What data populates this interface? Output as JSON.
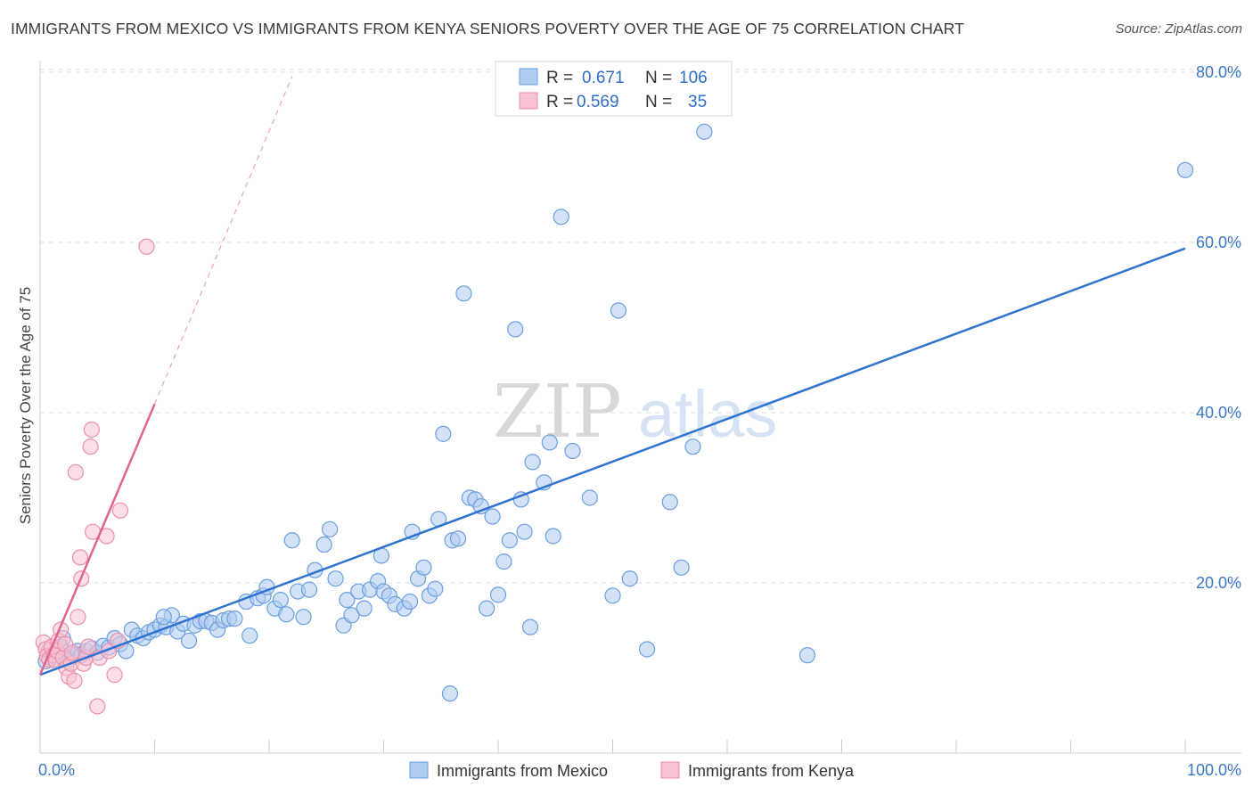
{
  "title": "IMMIGRANTS FROM MEXICO VS IMMIGRANTS FROM KENYA SENIORS POVERTY OVER THE AGE OF 75 CORRELATION CHART",
  "source": "Source: ZipAtlas.com",
  "watermark": {
    "zip": "ZIP",
    "atlas": "atlas"
  },
  "colors": {
    "mexico_fill": "#aecbf0",
    "mexico_stroke": "#6a9fe0",
    "mexico_line": "#2f73d0",
    "kenya_fill": "#f7c3d2",
    "kenya_stroke": "#ec8fab",
    "kenya_line": "#e0648e",
    "grid": "#dddddd",
    "tick_text": "#3b78c8"
  },
  "legend": {
    "rows": [
      {
        "r_label": "R =",
        "r_value": "0.671",
        "n_label": "N =",
        "n_value": "106"
      },
      {
        "r_label": "R =",
        "r_value": "0.569",
        "n_label": "N =",
        "n_value": "35"
      }
    ]
  },
  "chart_data": {
    "type": "scatter",
    "title": "IMMIGRANTS FROM MEXICO VS IMMIGRANTS FROM KENYA SENIORS POVERTY OVER THE AGE OF 75 CORRELATION CHART",
    "xlabel": "",
    "ylabel": "Seniors Poverty Over the Age of 75",
    "xlim": [
      0,
      100
    ],
    "ylim": [
      0,
      83
    ],
    "x_tick_labels": [
      {
        "value": 0,
        "label": "0.0%"
      },
      {
        "value": 100,
        "label": "100.0%"
      }
    ],
    "y_tick_labels": [
      {
        "value": 20,
        "label": "20.0%"
      },
      {
        "value": 40,
        "label": "40.0%"
      },
      {
        "value": 60,
        "label": "60.0%"
      },
      {
        "value": 80,
        "label": "80.0%"
      }
    ],
    "x_minor_ticks": [
      10,
      20,
      30,
      40,
      50,
      60,
      70,
      80,
      90,
      100
    ],
    "grid": true,
    "legend_position": "top-center",
    "series": [
      {
        "name": "Immigrants from Mexico",
        "r": 0.671,
        "n": 106,
        "trend": {
          "x": [
            0,
            100
          ],
          "y": [
            9.2,
            59.3
          ],
          "style": "solid"
        },
        "points": [
          [
            0.5,
            10.8
          ],
          [
            0.8,
            12.0
          ],
          [
            1.0,
            11.5
          ],
          [
            1.2,
            11.0
          ],
          [
            1.5,
            11.8
          ],
          [
            1.8,
            12.5
          ],
          [
            2.0,
            13.5
          ],
          [
            2.2,
            11.2
          ],
          [
            2.5,
            11.0
          ],
          [
            2.8,
            11.6
          ],
          [
            3.0,
            11.5
          ],
          [
            3.3,
            12.0
          ],
          [
            3.6,
            11.5
          ],
          [
            4.0,
            12.0
          ],
          [
            4.5,
            12.3
          ],
          [
            5.0,
            11.8
          ],
          [
            5.5,
            12.6
          ],
          [
            6.0,
            12.4
          ],
          [
            6.5,
            13.5
          ],
          [
            7.0,
            12.8
          ],
          [
            7.5,
            12.0
          ],
          [
            8.0,
            14.5
          ],
          [
            8.5,
            13.8
          ],
          [
            9.0,
            13.5
          ],
          [
            9.5,
            14.2
          ],
          [
            10.0,
            14.5
          ],
          [
            10.5,
            15.0
          ],
          [
            11.0,
            14.8
          ],
          [
            11.5,
            16.2
          ],
          [
            12.0,
            14.3
          ],
          [
            12.5,
            15.2
          ],
          [
            13.0,
            13.2
          ],
          [
            13.5,
            15.0
          ],
          [
            14.0,
            15.5
          ],
          [
            14.5,
            15.5
          ],
          [
            15.0,
            15.3
          ],
          [
            15.5,
            14.5
          ],
          [
            16.0,
            15.6
          ],
          [
            16.5,
            15.8
          ],
          [
            17.0,
            15.8
          ],
          [
            18.0,
            17.8
          ],
          [
            18.3,
            13.8
          ],
          [
            19.0,
            18.2
          ],
          [
            19.5,
            18.5
          ],
          [
            19.8,
            19.5
          ],
          [
            20.5,
            17.0
          ],
          [
            21.0,
            18.0
          ],
          [
            21.5,
            16.3
          ],
          [
            22.0,
            25.0
          ],
          [
            22.5,
            19.0
          ],
          [
            23.0,
            16.0
          ],
          [
            23.5,
            19.2
          ],
          [
            24.0,
            21.5
          ],
          [
            24.8,
            24.5
          ],
          [
            25.3,
            26.3
          ],
          [
            25.8,
            20.5
          ],
          [
            26.5,
            15.0
          ],
          [
            26.8,
            18.0
          ],
          [
            27.2,
            16.2
          ],
          [
            27.8,
            19.0
          ],
          [
            28.3,
            17.0
          ],
          [
            28.8,
            19.2
          ],
          [
            29.5,
            20.2
          ],
          [
            29.8,
            23.2
          ],
          [
            30.0,
            19.0
          ],
          [
            30.5,
            18.5
          ],
          [
            31.0,
            17.5
          ],
          [
            31.8,
            17.0
          ],
          [
            32.3,
            17.8
          ],
          [
            32.5,
            26.0
          ],
          [
            33.0,
            20.5
          ],
          [
            33.5,
            21.8
          ],
          [
            34.0,
            18.5
          ],
          [
            34.5,
            19.3
          ],
          [
            34.8,
            27.5
          ],
          [
            35.2,
            37.5
          ],
          [
            35.8,
            7.0
          ],
          [
            36.0,
            25.0
          ],
          [
            36.5,
            25.2
          ],
          [
            37.0,
            54.0
          ],
          [
            37.5,
            30.0
          ],
          [
            38.0,
            29.8
          ],
          [
            38.5,
            29.0
          ],
          [
            39.0,
            17.0
          ],
          [
            39.5,
            27.8
          ],
          [
            40.0,
            18.6
          ],
          [
            40.5,
            22.5
          ],
          [
            41.0,
            25.0
          ],
          [
            41.5,
            49.8
          ],
          [
            42.0,
            29.8
          ],
          [
            42.3,
            26.0
          ],
          [
            42.8,
            14.8
          ],
          [
            43.0,
            34.2
          ],
          [
            44.0,
            31.8
          ],
          [
            44.5,
            36.5
          ],
          [
            44.8,
            25.5
          ],
          [
            45.5,
            63.0
          ],
          [
            46.5,
            35.5
          ],
          [
            48.0,
            30.0
          ],
          [
            50.0,
            18.5
          ],
          [
            50.5,
            52.0
          ],
          [
            51.5,
            20.5
          ],
          [
            53.0,
            12.2
          ],
          [
            55.0,
            29.5
          ],
          [
            56.0,
            21.8
          ],
          [
            57.0,
            36.0
          ],
          [
            58.0,
            73.0
          ],
          [
            67.0,
            11.5
          ],
          [
            100.0,
            68.5
          ],
          [
            10.8,
            16.0
          ]
        ]
      },
      {
        "name": "Immigrants from Kenya",
        "r": 0.569,
        "n": 35,
        "trend": {
          "x": [
            0,
            10
          ],
          "y": [
            9.2,
            41.0
          ],
          "style": "solid",
          "extended_to": [
            22.0,
            79.5
          ],
          "extended_style": "dashed"
        },
        "points": [
          [
            0.3,
            13.0
          ],
          [
            0.5,
            12.2
          ],
          [
            0.6,
            11.4
          ],
          [
            0.8,
            11.0
          ],
          [
            1.0,
            12.5
          ],
          [
            1.2,
            11.5
          ],
          [
            1.4,
            10.8
          ],
          [
            1.5,
            12.0
          ],
          [
            1.6,
            13.2
          ],
          [
            1.8,
            14.5
          ],
          [
            2.0,
            11.2
          ],
          [
            2.2,
            12.8
          ],
          [
            2.3,
            10.0
          ],
          [
            2.5,
            9.0
          ],
          [
            2.7,
            10.5
          ],
          [
            2.8,
            11.8
          ],
          [
            3.0,
            8.5
          ],
          [
            3.1,
            33.0
          ],
          [
            3.3,
            16.0
          ],
          [
            3.5,
            23.0
          ],
          [
            3.6,
            20.5
          ],
          [
            3.8,
            10.5
          ],
          [
            4.0,
            11.2
          ],
          [
            4.2,
            12.5
          ],
          [
            4.4,
            36.0
          ],
          [
            4.5,
            38.0
          ],
          [
            4.6,
            26.0
          ],
          [
            5.0,
            5.5
          ],
          [
            5.2,
            11.2
          ],
          [
            5.8,
            25.5
          ],
          [
            6.0,
            12.0
          ],
          [
            6.5,
            9.2
          ],
          [
            6.8,
            13.2
          ],
          [
            7.0,
            28.5
          ],
          [
            9.3,
            59.5
          ]
        ]
      }
    ]
  },
  "bottom_legend": {
    "items": [
      {
        "label": "Immigrants from Mexico"
      },
      {
        "label": "Immigrants from Kenya"
      }
    ]
  }
}
